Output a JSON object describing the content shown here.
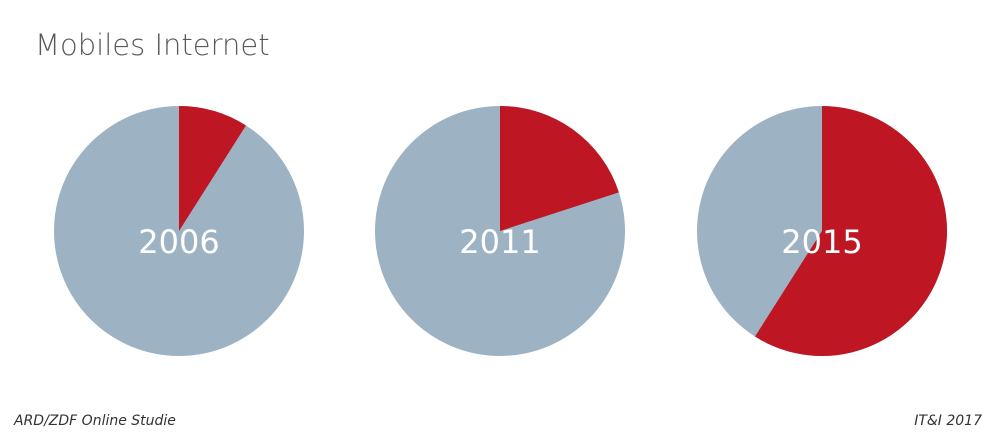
{
  "title": "Mobiles Internet",
  "footer": {
    "source": "ARD/ZDF Online Studie",
    "credit": "IT&I 2017"
  },
  "chart_data": {
    "type": "pie",
    "title": "Mobiles Internet",
    "colors": {
      "highlight": "#be1622",
      "rest": "#9db3c4"
    },
    "pies": [
      {
        "label": "2006",
        "value_percent": 9
      },
      {
        "label": "2011",
        "value_percent": 20
      },
      {
        "label": "2015",
        "value_percent": 59
      }
    ]
  }
}
